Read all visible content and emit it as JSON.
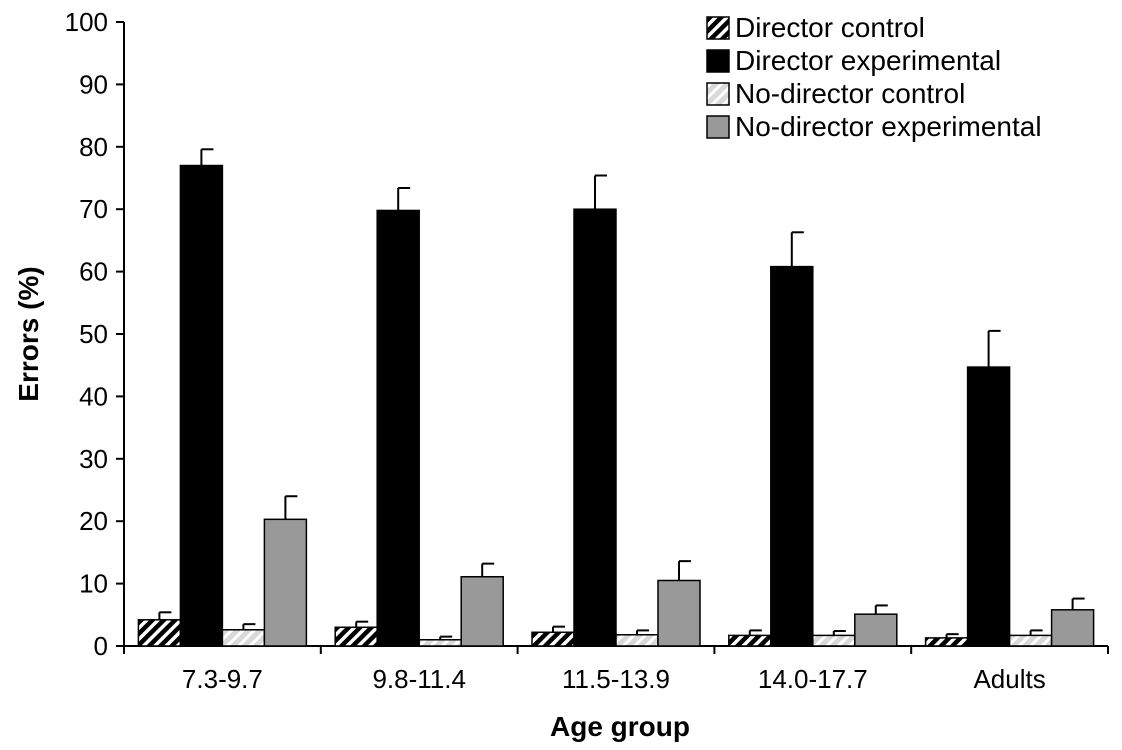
{
  "chart_data": {
    "type": "bar",
    "title": "",
    "xlabel": "Age group",
    "ylabel": "Errors (%)",
    "ylim": [
      0,
      100
    ],
    "yticks": [
      "0",
      "10",
      "20",
      "30",
      "40",
      "50",
      "60",
      "70",
      "80",
      "90",
      "100"
    ],
    "categories": [
      "7.3-9.7",
      "9.8-11.4",
      "11.5-13.9",
      "14.0-17.7",
      "Adults"
    ],
    "grid": false,
    "legend_position": "top-right",
    "series": [
      {
        "name": "Director control",
        "fill": "hatched-black",
        "values": [
          4.2,
          3.0,
          2.2,
          1.7,
          1.3
        ],
        "error": [
          1.2,
          0.9,
          0.9,
          0.8,
          0.6
        ]
      },
      {
        "name": "Director experimental",
        "fill": "black",
        "values": [
          77.0,
          69.8,
          70.0,
          60.8,
          44.7
        ],
        "error": [
          2.6,
          3.6,
          5.4,
          5.5,
          5.8
        ]
      },
      {
        "name": "No-director control",
        "fill": "hatched-gray",
        "values": [
          2.6,
          1.0,
          1.8,
          1.7,
          1.7
        ],
        "error": [
          0.9,
          0.5,
          0.7,
          0.7,
          0.8
        ]
      },
      {
        "name": "No-director experimental",
        "fill": "gray",
        "values": [
          20.3,
          11.1,
          10.5,
          5.1,
          5.8
        ],
        "error": [
          3.7,
          2.1,
          3.1,
          1.4,
          1.8
        ]
      }
    ],
    "colors": {
      "black": "#000000",
      "gray": "#999999",
      "hatch_light": "#d9d9d9",
      "hatch_dark": "#000000"
    }
  }
}
